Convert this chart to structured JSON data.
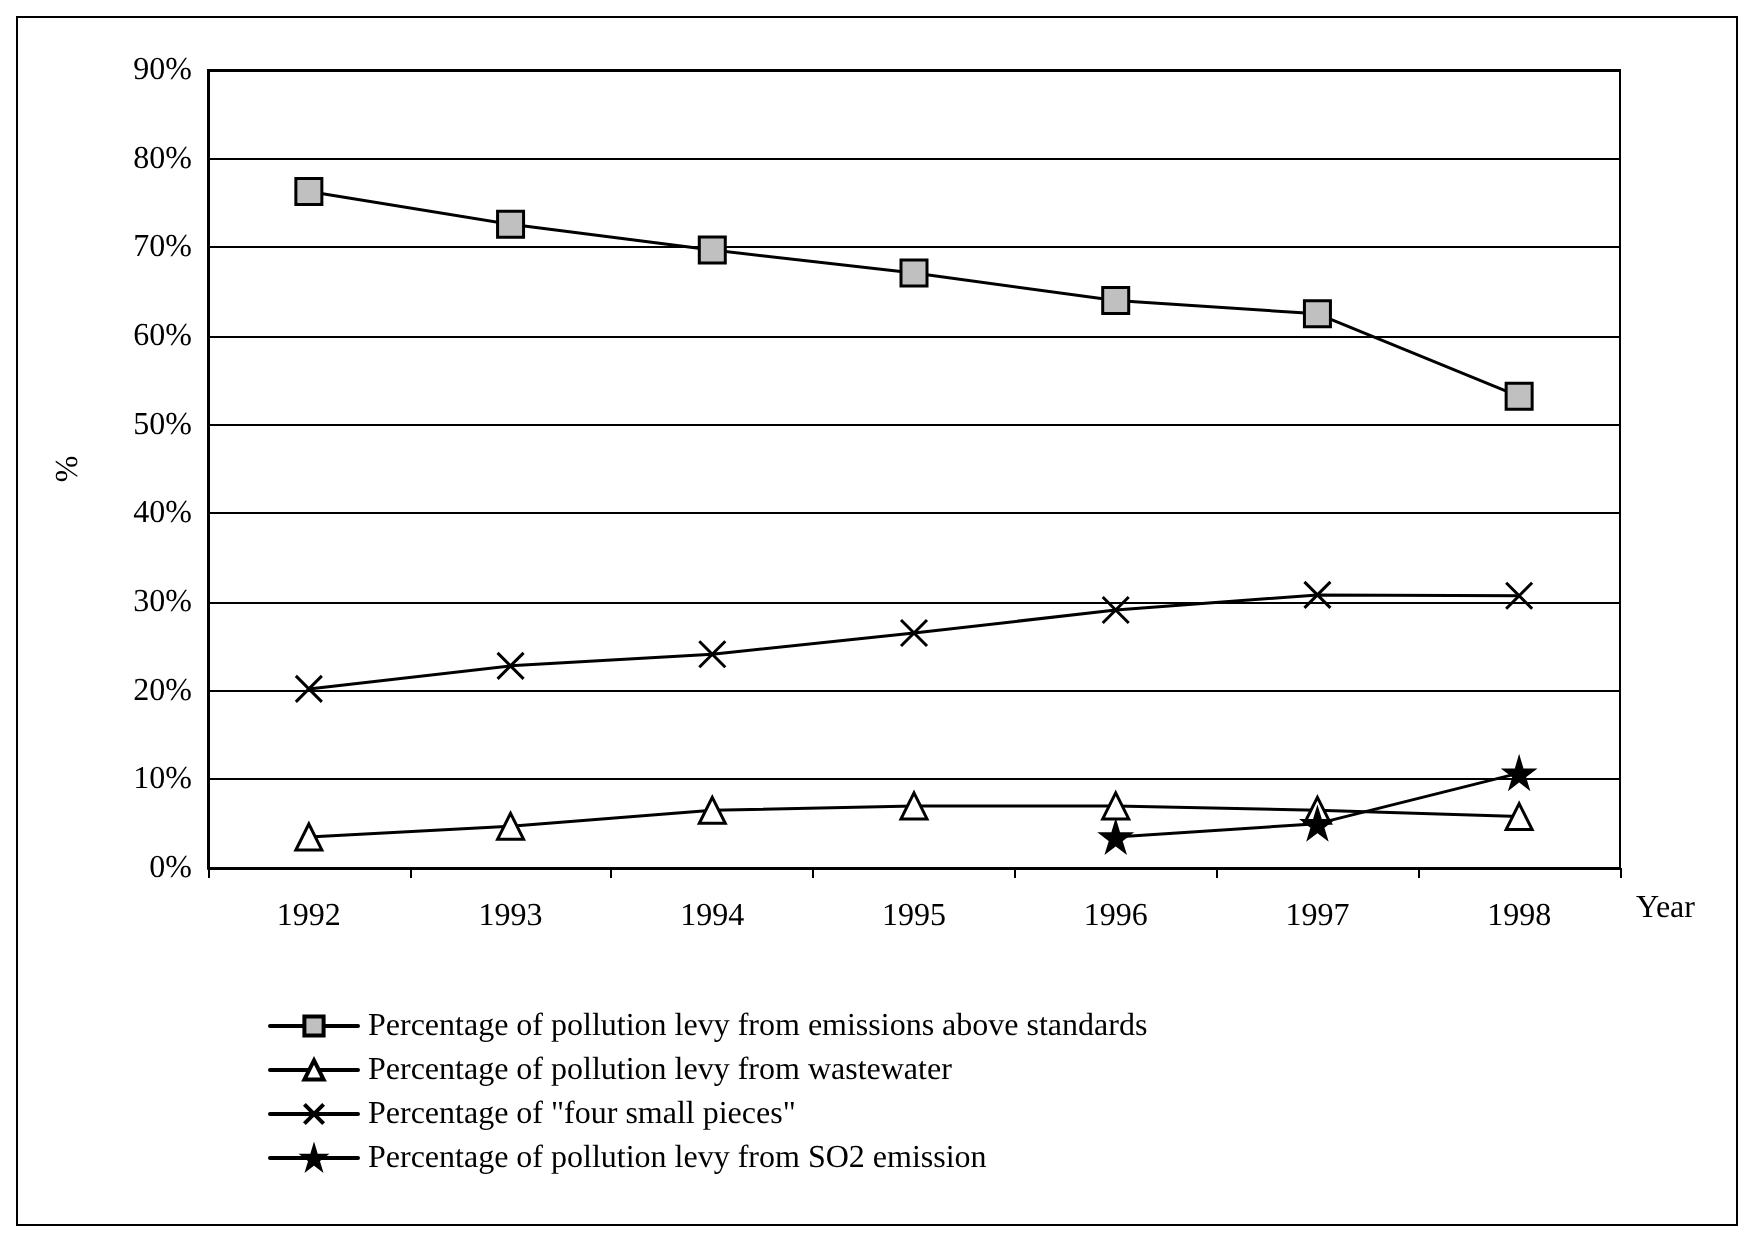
{
  "chart_data": {
    "type": "line",
    "xlabel": "Year",
    "ylabel": "%",
    "categories": [
      "1992",
      "1993",
      "1994",
      "1995",
      "1996",
      "1997",
      "1998"
    ],
    "series": [
      {
        "name": "Percentage of pollution levy from emissions above standards",
        "color": "#000000",
        "marker": "square",
        "values": [
          76.3,
          72.6,
          69.7,
          67.1,
          64.0,
          62.5,
          53.2
        ]
      },
      {
        "name": "Percentage of pollution levy from wastewater",
        "color": "#000000",
        "marker": "triangle",
        "values": [
          3.5,
          4.7,
          6.5,
          7.0,
          7.0,
          6.5,
          5.8
        ]
      },
      {
        "name": "Percentage of \"four small pieces\"",
        "color": "#000000",
        "marker": "cross",
        "values": [
          20.2,
          22.8,
          24.1,
          26.5,
          29.1,
          30.8,
          30.7
        ]
      },
      {
        "name": "Percentage of pollution levy from SO2 emission",
        "color": "#000000",
        "marker": "star",
        "values": [
          null,
          null,
          null,
          null,
          3.5,
          5.0,
          10.7
        ]
      }
    ],
    "ylim": [
      0,
      90
    ],
    "yticks": [
      {
        "value": 0,
        "label": "0%"
      },
      {
        "value": 10,
        "label": "10%"
      },
      {
        "value": 20,
        "label": "20%"
      },
      {
        "value": 30,
        "label": "30%"
      },
      {
        "value": 40,
        "label": "40%"
      },
      {
        "value": 50,
        "label": "50%"
      },
      {
        "value": 60,
        "label": "60%"
      },
      {
        "value": 70,
        "label": "70%"
      },
      {
        "value": 80,
        "label": "80%"
      },
      {
        "value": 90,
        "label": "90%"
      }
    ],
    "grid": "y",
    "legend": "bottom",
    "line_style": "solid"
  }
}
